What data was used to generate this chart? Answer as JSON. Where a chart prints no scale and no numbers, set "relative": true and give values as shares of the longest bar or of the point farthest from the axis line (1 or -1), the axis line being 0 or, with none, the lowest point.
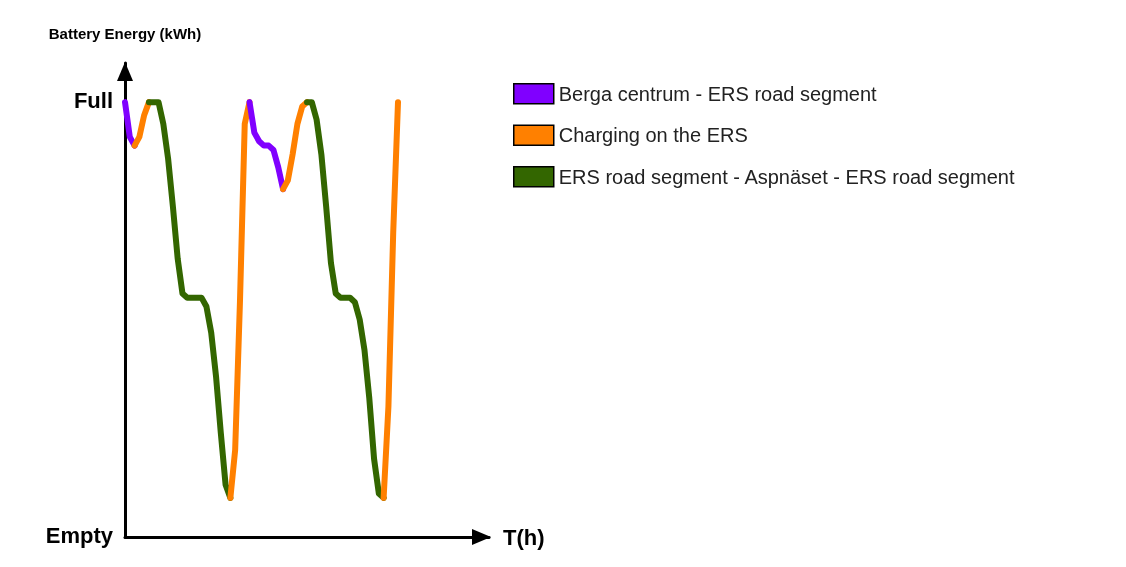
{
  "chart_data": {
    "type": "line",
    "ylabel": "Battery Energy (kWh)",
    "xlabel": "T(h)",
    "categories": [
      null,
      null,
      null,
      null,
      null,
      null,
      null,
      null,
      null,
      null,
      null,
      null,
      null,
      null,
      null,
      null,
      null,
      null,
      null,
      null,
      null,
      null,
      null,
      null,
      null,
      null,
      null,
      null,
      null,
      null,
      null,
      null,
      null,
      null,
      null,
      null,
      null,
      null,
      null,
      null,
      null,
      null,
      null,
      null,
      null,
      null,
      null,
      null,
      null,
      null,
      null,
      null,
      null,
      null,
      null,
      null,
      null,
      null
    ],
    "series": [
      {
        "name": "Berga centrum - ERS road segment",
        "color": "#8000ff",
        "values": [
          1.0,
          0.92,
          0.9,
          null,
          null,
          null,
          null,
          null,
          null,
          null,
          null,
          null,
          null,
          null,
          null,
          null,
          null,
          null,
          null,
          null,
          null,
          null,
          null,
          null,
          null,
          null,
          null,
          null,
          null,
          null,
          null,
          null,
          null,
          null,
          null,
          null,
          null,
          null,
          null,
          null,
          null,
          null,
          null,
          null,
          null,
          null,
          null,
          null,
          null,
          null,
          null,
          null,
          null,
          null,
          null,
          null,
          null,
          null
        ]
      },
      {
        "name": "Charging on the ERS",
        "color": "#ff8000",
        "values": [
          null,
          null,
          0.9,
          0.92,
          0.97,
          1.0,
          null,
          null,
          null,
          null,
          null,
          null,
          null,
          null,
          null,
          null,
          null,
          null,
          null,
          null,
          null,
          null,
          null,
          null,
          null,
          null,
          null,
          null,
          null,
          null,
          null,
          null,
          null,
          null,
          null,
          null,
          null,
          null,
          null,
          null,
          null,
          null,
          null,
          null,
          null,
          null,
          null,
          null,
          null,
          null,
          null,
          null,
          null,
          null,
          null,
          null,
          null,
          null
        ]
      },
      {
        "name": "ERS road segment - Aspnäset - ERS road segment",
        "color": "#336600",
        "values": [
          null,
          null,
          null,
          null,
          null,
          1.0,
          1.0,
          1.0,
          0.95,
          0.87,
          0.76,
          0.64,
          0.56,
          0.55,
          0.55,
          0.55,
          0.55,
          0.53,
          0.47,
          0.37,
          0.24,
          0.12,
          0.09,
          null,
          null,
          null,
          null,
          null,
          null,
          null,
          null,
          null,
          null,
          null,
          null,
          null,
          null,
          null,
          null,
          null,
          null,
          null,
          null,
          null,
          null,
          null,
          null,
          null,
          null,
          null,
          null,
          null,
          null,
          null,
          null,
          null,
          null,
          null
        ]
      },
      {
        "color": "#ff8000",
        "values": [
          null,
          null,
          null,
          null,
          null,
          null,
          null,
          null,
          null,
          null,
          null,
          null,
          null,
          null,
          null,
          null,
          null,
          null,
          null,
          null,
          null,
          null,
          0.09,
          0.2,
          0.54,
          0.95,
          1.0,
          null,
          null,
          null,
          null,
          null,
          null,
          null,
          null,
          null,
          null,
          null,
          null,
          null,
          null,
          null,
          null,
          null,
          null,
          null,
          null,
          null,
          null,
          null,
          null,
          null,
          null,
          null,
          null,
          null,
          null,
          null
        ]
      },
      {
        "color": "#8000ff",
        "values": [
          null,
          null,
          null,
          null,
          null,
          null,
          null,
          null,
          null,
          null,
          null,
          null,
          null,
          null,
          null,
          null,
          null,
          null,
          null,
          null,
          null,
          null,
          null,
          null,
          null,
          null,
          1.0,
          0.93,
          0.91,
          0.9,
          0.9,
          0.89,
          0.85,
          0.8,
          null,
          null,
          null,
          null,
          null,
          null,
          null,
          null,
          null,
          null,
          null,
          null,
          null,
          null,
          null,
          null,
          null,
          null,
          null,
          null,
          null,
          null,
          null,
          null
        ]
      },
      {
        "color": "#ff8000",
        "values": [
          null,
          null,
          null,
          null,
          null,
          null,
          null,
          null,
          null,
          null,
          null,
          null,
          null,
          null,
          null,
          null,
          null,
          null,
          null,
          null,
          null,
          null,
          null,
          null,
          null,
          null,
          null,
          null,
          null,
          null,
          null,
          null,
          null,
          0.8,
          0.82,
          0.88,
          0.95,
          0.99,
          1.0,
          null,
          null,
          null,
          null,
          null,
          null,
          null,
          null,
          null,
          null,
          null,
          null,
          null,
          null,
          null,
          null,
          null,
          null,
          null
        ]
      },
      {
        "color": "#336600",
        "values": [
          null,
          null,
          null,
          null,
          null,
          null,
          null,
          null,
          null,
          null,
          null,
          null,
          null,
          null,
          null,
          null,
          null,
          null,
          null,
          null,
          null,
          null,
          null,
          null,
          null,
          null,
          null,
          null,
          null,
          null,
          null,
          null,
          null,
          null,
          null,
          null,
          null,
          null,
          1.0,
          1.0,
          0.96,
          0.88,
          0.76,
          0.63,
          0.56,
          0.55,
          0.55,
          0.55,
          0.54,
          0.5,
          0.43,
          0.32,
          0.18,
          0.1,
          0.09,
          null,
          null,
          null
        ]
      },
      {
        "color": "#ff8000",
        "values": [
          null,
          null,
          null,
          null,
          null,
          null,
          null,
          null,
          null,
          null,
          null,
          null,
          null,
          null,
          null,
          null,
          null,
          null,
          null,
          null,
          null,
          null,
          null,
          null,
          null,
          null,
          null,
          null,
          null,
          null,
          null,
          null,
          null,
          null,
          null,
          null,
          null,
          null,
          null,
          null,
          null,
          null,
          null,
          null,
          null,
          null,
          null,
          null,
          null,
          null,
          null,
          null,
          null,
          null,
          0.09,
          0.3,
          0.7,
          1.0
        ]
      }
    ],
    "relative": true,
    "annotations": [
      "Full",
      "Empty"
    ],
    "grid": false,
    "legend": "top right",
    "marker": "none",
    "line_style": "solid"
  }
}
